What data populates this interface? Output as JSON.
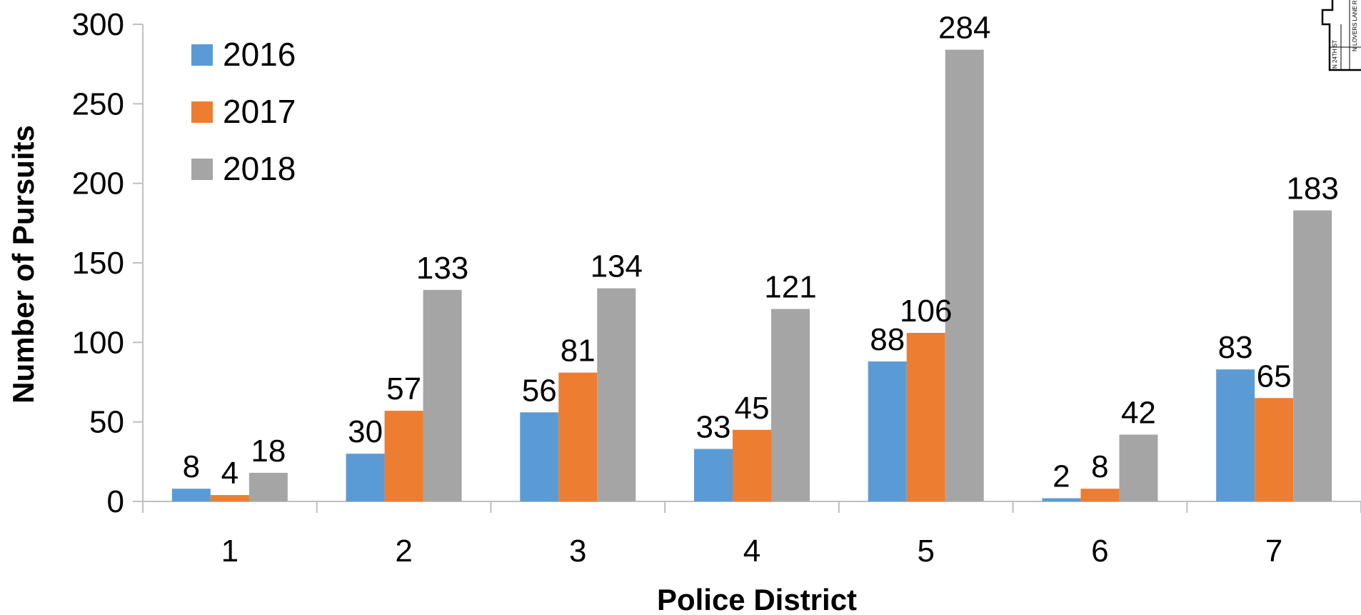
{
  "chart_data": {
    "type": "bar",
    "title": "",
    "xlabel": "Police District",
    "ylabel": "Number of Pursuits",
    "categories": [
      "1",
      "2",
      "3",
      "4",
      "5",
      "6",
      "7"
    ],
    "series": [
      {
        "name": "2016",
        "color": "#5b9bd5",
        "values": [
          8,
          30,
          56,
          33,
          88,
          2,
          83
        ]
      },
      {
        "name": "2017",
        "color": "#ed7d31",
        "values": [
          4,
          57,
          81,
          45,
          106,
          8,
          65
        ]
      },
      {
        "name": "2018",
        "color": "#a5a5a5",
        "values": [
          18,
          133,
          134,
          121,
          284,
          42,
          183
        ]
      }
    ],
    "ylim": [
      0,
      300
    ],
    "yticks": [
      0,
      50,
      100,
      150,
      200,
      250,
      300
    ],
    "grid": false,
    "legend_position": "top-left",
    "data_labels": true
  },
  "corner_map": {
    "label_street_a": "N 24TH ST",
    "label_street_b": "N LOVERS LANE RD"
  }
}
